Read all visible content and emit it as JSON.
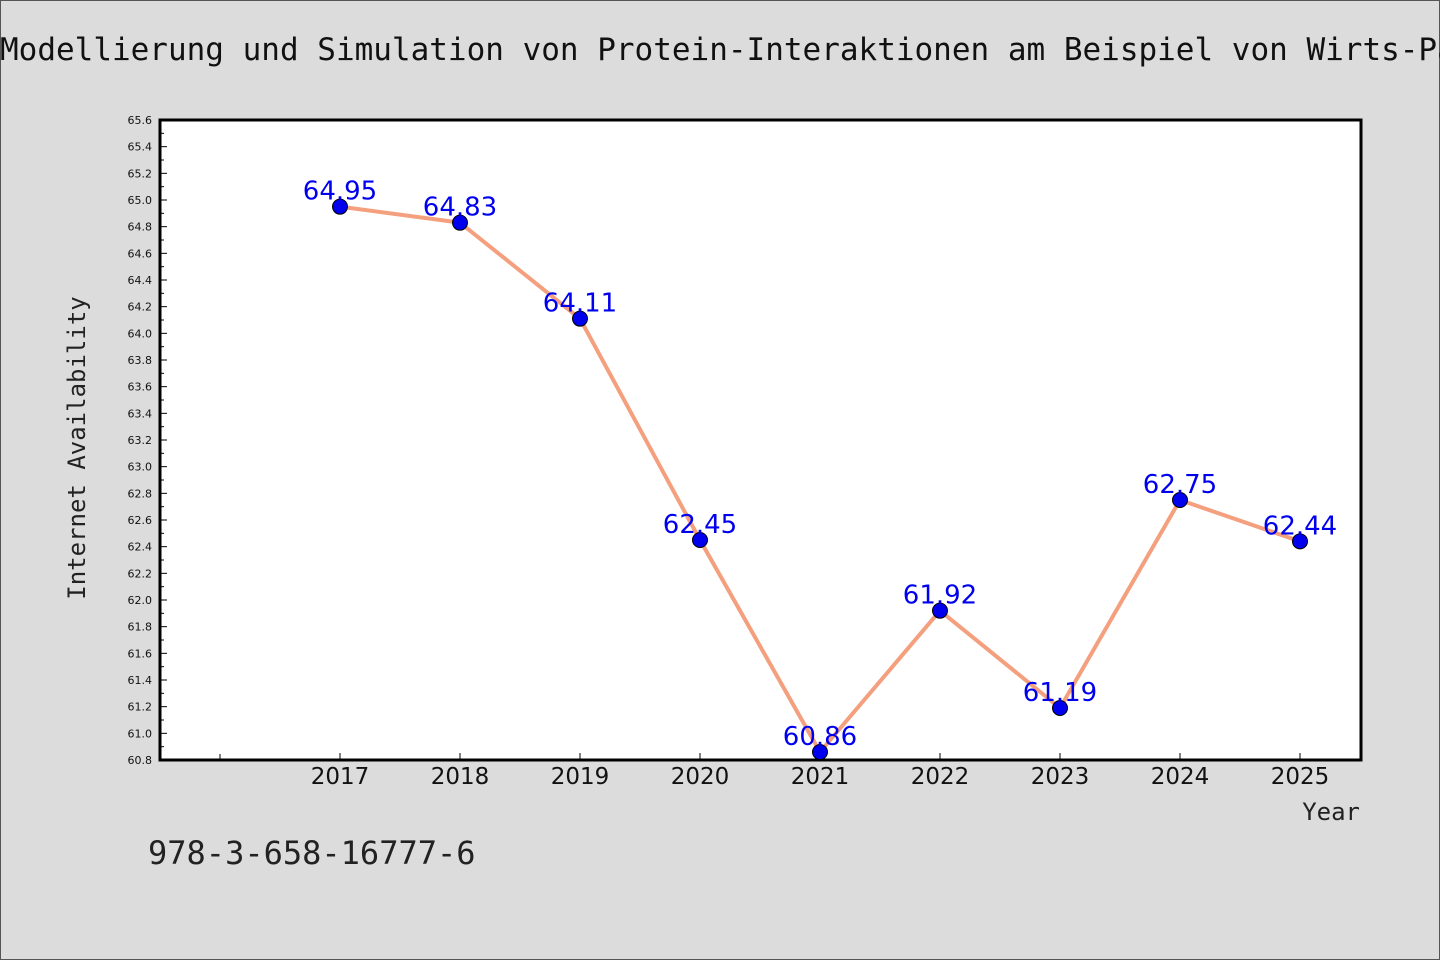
{
  "title": "Modellierung und Simulation von Protein-Interaktionen am Beispiel von Wirts-Path",
  "footer_text": "978-3-658-16777-6",
  "chart_data": {
    "type": "line",
    "categories": [
      "2017",
      "2018",
      "2019",
      "2020",
      "2021",
      "2022",
      "2023",
      "2024",
      "2025"
    ],
    "values": [
      64.95,
      64.83,
      64.11,
      62.45,
      60.86,
      61.92,
      61.19,
      62.75,
      62.44
    ],
    "data_labels": [
      "64.95",
      "64.83",
      "64.11",
      "62.45",
      "60.86",
      "61.92",
      "61.19",
      "62.75",
      "62.44"
    ],
    "xlabel": "Year",
    "ylabel": "Internet Availability",
    "ylim": [
      60.8,
      65.6
    ],
    "yticks": [
      "60.8",
      "61.0",
      "61.2",
      "61.4",
      "61.6",
      "61.8",
      "62.0",
      "62.2",
      "62.4",
      "62.6",
      "62.8",
      "63.0",
      "63.2",
      "63.4",
      "63.6",
      "63.8",
      "64.0",
      "64.2",
      "64.4",
      "64.6",
      "64.8",
      "65.0",
      "65.2",
      "65.4",
      "65.6"
    ],
    "line_color": "#f4a07e",
    "marker_color": "#0000ee",
    "label_color": "#0000ee",
    "grid": false,
    "legend": "none"
  }
}
